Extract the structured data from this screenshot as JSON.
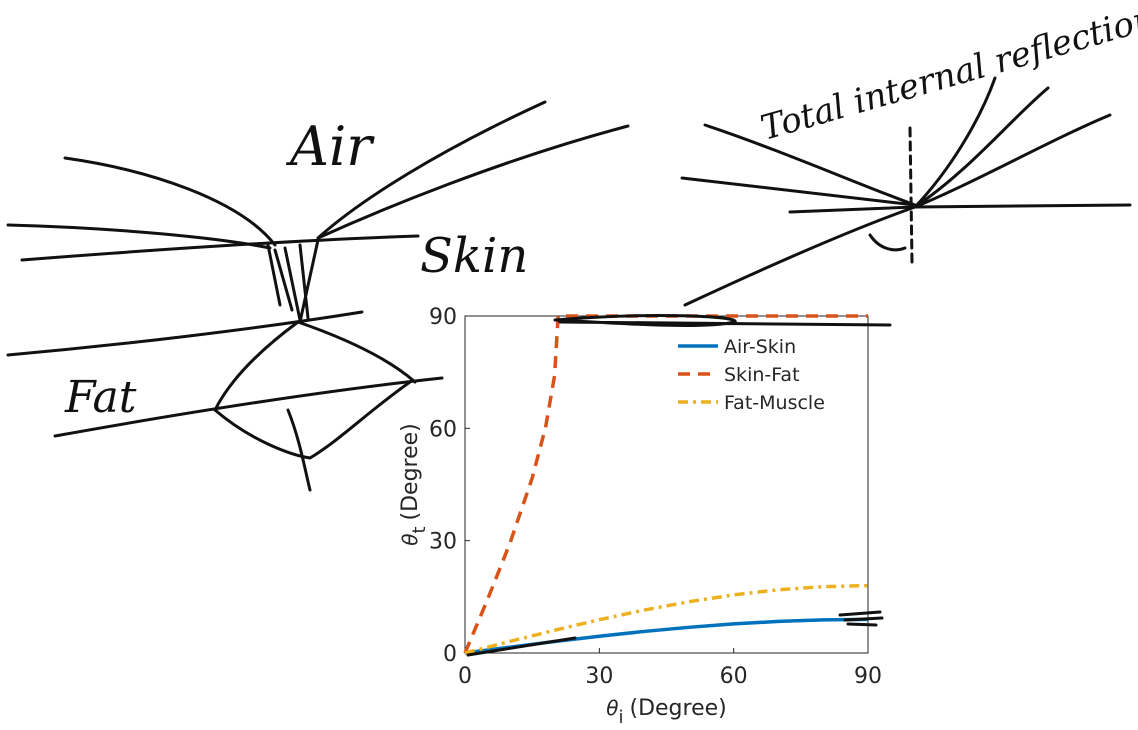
{
  "chart_data": {
    "type": "line",
    "x_label": {
      "symbol": "θ",
      "subscript": "i",
      "text": "(Degree)"
    },
    "y_label": {
      "symbol": "θ",
      "subscript": "t",
      "text": "(Degree)"
    },
    "xlim": [
      0,
      90
    ],
    "ylim": [
      0,
      90
    ],
    "xticks": [
      0,
      30,
      60,
      90
    ],
    "yticks": [
      0,
      30,
      60,
      90
    ],
    "legend": "upper right",
    "series": [
      {
        "name": "Air-Skin",
        "color": "#0072BD",
        "dash": "solid",
        "x": [
          0,
          10,
          20,
          30,
          40,
          50,
          60,
          70,
          80,
          90
        ],
        "values": [
          0,
          1.55,
          3.06,
          4.47,
          5.76,
          6.86,
          7.77,
          8.43,
          8.84,
          8.97
        ]
      },
      {
        "name": "Skin-Fat",
        "color": "#D95319",
        "dash": "dashed",
        "x": [
          0,
          5,
          10,
          15,
          18,
          20,
          20.8,
          30,
          45,
          60,
          75,
          90
        ],
        "values": [
          0,
          14.2,
          29.2,
          46.7,
          60.3,
          74.0,
          90,
          90,
          90,
          90,
          90,
          90
        ]
      },
      {
        "name": "Fat-Muscle",
        "color": "#EDB120",
        "dash": "dashdot",
        "x": [
          0,
          10,
          20,
          30,
          40,
          50,
          60,
          70,
          80,
          90
        ],
        "values": [
          0,
          3.08,
          6.07,
          8.89,
          11.46,
          13.69,
          15.52,
          16.89,
          17.72,
          18.0
        ]
      }
    ],
    "annotations": [
      "Air",
      "Skin",
      "Fat",
      "Total internal reflection"
    ]
  }
}
